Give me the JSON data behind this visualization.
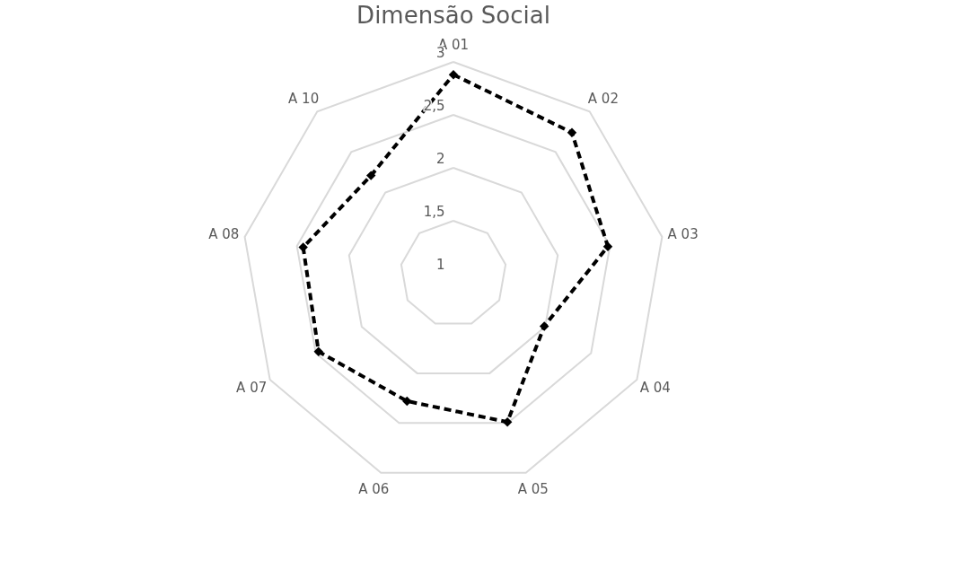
{
  "chart_data": {
    "type": "radar",
    "title": "Dimensão Social",
    "categories": [
      "A 01",
      "A 02",
      "A 03",
      "A 04",
      "A 05",
      "A 06",
      "A 07",
      "A 08",
      "A 10"
    ],
    "series": [
      {
        "color": "#000000",
        "values": [
          2.88,
          2.74,
          2.48,
          1.99,
          2.49,
          2.28,
          2.47,
          2.44,
          2.21
        ]
      }
    ],
    "ylim": [
      1,
      3
    ],
    "yticks": [
      1,
      {
        "value": 1.5,
        "label": "1,5"
      },
      2,
      {
        "value": 2.5,
        "label": "2,5"
      },
      3
    ],
    "grid": true,
    "marker": "diamond",
    "line_style": "dashed"
  }
}
